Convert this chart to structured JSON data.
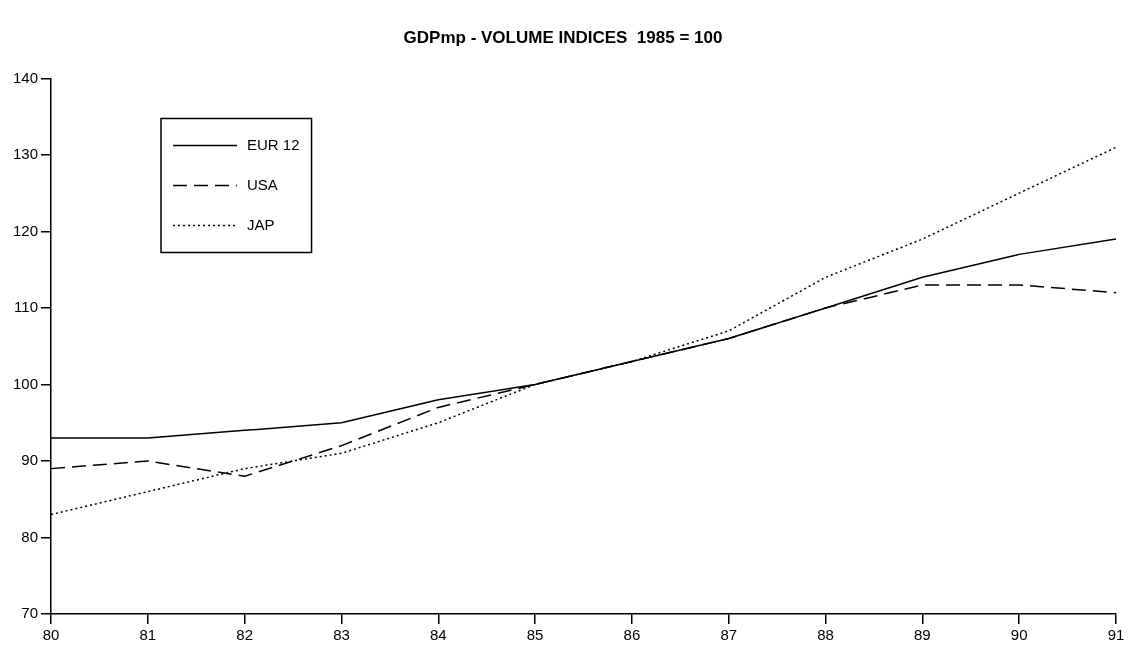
{
  "chart_data": {
    "type": "line",
    "title": "GDPmp - VOLUME INDICES  1985 = 100",
    "categories": [
      "80",
      "81",
      "82",
      "83",
      "84",
      "85",
      "86",
      "87",
      "88",
      "89",
      "90",
      "91"
    ],
    "series": [
      {
        "name": "EUR 12",
        "color": "#000000",
        "line_style": "solid",
        "values": [
          93,
          93,
          94,
          95,
          98,
          100,
          103,
          106,
          110,
          114,
          117,
          119
        ]
      },
      {
        "name": "USA",
        "color": "#000000",
        "line_style": "dashed",
        "values": [
          89,
          90,
          88,
          92,
          97,
          100,
          103,
          106,
          110,
          113,
          113,
          112
        ]
      },
      {
        "name": "JAP",
        "color": "#000000",
        "line_style": "dotted",
        "values": [
          83,
          86,
          89,
          91,
          95,
          100,
          103,
          107,
          114,
          119,
          125,
          131
        ]
      }
    ],
    "ylim": [
      70,
      140
    ],
    "yticks": [
      70,
      80,
      90,
      100,
      110,
      120,
      130,
      140
    ],
    "grid": false,
    "legend": "top left",
    "marker": "none"
  }
}
